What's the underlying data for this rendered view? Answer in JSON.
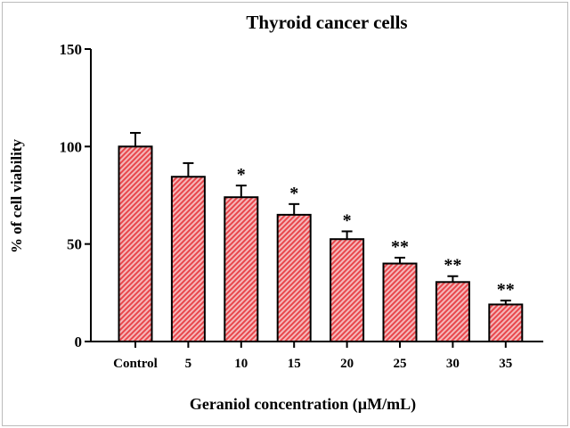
{
  "chart_data": {
    "type": "bar",
    "title": "Thyroid cancer cells",
    "xlabel": "Geraniol concentration (µM/mL)",
    "ylabel": "% of cell viability",
    "categories": [
      "Control",
      "5",
      "10",
      "15",
      "20",
      "25",
      "30",
      "35"
    ],
    "values": [
      100,
      84.5,
      74,
      65,
      52.5,
      40,
      30.5,
      19
    ],
    "error": [
      7,
      7,
      6,
      5.5,
      4,
      3,
      3,
      2
    ],
    "significance": [
      "",
      "",
      "*",
      "*",
      "*",
      "**",
      "**",
      "**"
    ],
    "ylim": [
      0,
      150
    ],
    "yticks": [
      0,
      50,
      100,
      150
    ],
    "grid": false,
    "colors": {
      "bar_fill": "#e8474c",
      "bar_stroke": "#000000"
    }
  }
}
